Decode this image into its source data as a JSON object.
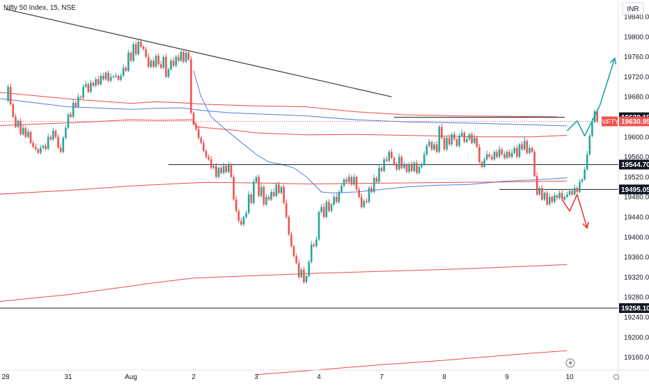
{
  "header": {
    "title": "Nifty 50 Index, 15, NSE"
  },
  "currency_button": "INR",
  "chart_data": {
    "type": "candlestick",
    "symbol": "NIFTY",
    "interval": "15",
    "exchange": "NSE",
    "currency": "INR",
    "ylim": [
      19130,
      19870
    ],
    "y_ticks": [
      "19840.00",
      "19800.00",
      "19760.00",
      "19720.00",
      "19680.00",
      "19640.00",
      "19600.00",
      "19560.00",
      "19520.00",
      "19480.00",
      "19440.00",
      "19400.00",
      "19360.00",
      "19320.00",
      "19280.00",
      "19240.00",
      "19200.00",
      "19160.00"
    ],
    "x_ticks": [
      {
        "label": "28",
        "index": 0
      },
      {
        "label": "31",
        "index": 25
      },
      {
        "label": "Aug",
        "index": 50
      },
      {
        "label": "2",
        "index": 75
      },
      {
        "label": "3",
        "index": 100
      },
      {
        "label": "4",
        "index": 125
      },
      {
        "label": "7",
        "index": 150
      },
      {
        "label": "8",
        "index": 175
      },
      {
        "label": "9",
        "index": 200
      },
      {
        "label": "10",
        "index": 225
      }
    ],
    "price_labels": [
      {
        "text": "19639.15",
        "value": 19639.15,
        "style": "level"
      },
      {
        "text": "19630.95",
        "value": 19630.95,
        "style": "last",
        "tag": "NIFTY"
      },
      {
        "text": "19544.70",
        "value": 19544.7,
        "style": "level"
      },
      {
        "text": "19495.05",
        "value": 19495.05,
        "style": "level"
      },
      {
        "text": "19258.10",
        "value": 19258.1,
        "style": "level"
      }
    ],
    "horizontal_levels": [
      {
        "value": 19639.15,
        "from_index": 155,
        "to_index": 223
      },
      {
        "value": 19544.7,
        "from_index": 65,
        "to_index": 245
      },
      {
        "value": 19495.05,
        "from_index": 197,
        "to_index": 245
      },
      {
        "value": 19258.1,
        "from_index": -3,
        "to_index": 245
      }
    ],
    "trendline": {
      "from": [
        0,
        19855
      ],
      "to": [
        154,
        19680
      ]
    },
    "projections": [
      {
        "color": "#1aa5a5",
        "points": [
          [
            224,
            19612
          ],
          [
            228,
            19632
          ],
          [
            231,
            19602
          ],
          [
            237,
            19662
          ],
          [
            243,
            19757
          ]
        ],
        "arrow": true
      },
      {
        "color": "#e53935",
        "points": [
          [
            222,
            19475
          ],
          [
            225,
            19452
          ],
          [
            228,
            19485
          ],
          [
            232,
            19418
          ]
        ],
        "arrow": true
      }
    ],
    "open_close": [
      19672,
      19700,
      19665,
      19640,
      19620,
      19632,
      19605,
      19618,
      19600,
      19610,
      19588,
      19580,
      19575,
      19568,
      19578,
      19582,
      19576,
      19600,
      19595,
      19612,
      19600,
      19578,
      19570,
      19598,
      19618,
      19645,
      19640,
      19668,
      19660,
      19680,
      19678,
      19700,
      19705,
      19690,
      19708,
      19702,
      19715,
      19705,
      19722,
      19715,
      19728,
      19712,
      19720,
      19720,
      19722,
      19714,
      19722,
      19738,
      19732,
      19768,
      19752,
      19785,
      19765,
      19790,
      19780,
      19775,
      19760,
      19740,
      19752,
      19740,
      19762,
      19745,
      19738,
      19760,
      19720,
      19735,
      19752,
      19742,
      19760,
      19752,
      19770,
      19750,
      19768,
      19755,
      19648,
      19625,
      19615,
      19598,
      19588,
      19572,
      19560,
      19555,
      19538,
      19542,
      19520,
      19538,
      19528,
      19542,
      19530,
      19545,
      19520,
      19475,
      19452,
      19432,
      19425,
      19440,
      19448,
      19485,
      19468,
      19510,
      19520,
      19482,
      19500,
      19465,
      19480,
      19475,
      19490,
      19482,
      19505,
      19488,
      19500,
      19468,
      19440,
      19405,
      19382,
      19362,
      19348,
      19320,
      19335,
      19310,
      19322,
      19350,
      19385,
      19382,
      19395,
      19450,
      19460,
      19440,
      19470,
      19452,
      19465,
      19480,
      19470,
      19490,
      19502,
      19515,
      19510,
      19520,
      19505,
      19520,
      19495,
      19480,
      19460,
      19472,
      19470,
      19498,
      19490,
      19518,
      19510,
      19538,
      19532,
      19555,
      19552,
      19570,
      19558,
      19545,
      19535,
      19560,
      19538,
      19545,
      19530,
      19545,
      19532,
      19548,
      19528,
      19540,
      19545,
      19565,
      19582,
      19590,
      19575,
      19585,
      19570,
      19620,
      19598,
      19575,
      19598,
      19585,
      19605,
      19595,
      19582,
      19602,
      19608,
      19590,
      19595,
      19605,
      19588,
      19598,
      19580,
      19550,
      19540,
      19555,
      19565,
      19560,
      19555,
      19570,
      19560,
      19575,
      19565,
      19558,
      19570,
      19560,
      19568,
      19578,
      19560,
      19585,
      19575,
      19592,
      19568,
      19578,
      19570,
      19522,
      19485,
      19498,
      19475,
      19488,
      19465,
      19480,
      19470,
      19483,
      19478,
      19488,
      19475,
      19480,
      19485,
      19492,
      19485,
      19498,
      19490,
      19510,
      19515,
      19535,
      19565,
      19602,
      19630,
      19651,
      19631
    ],
    "highs_lows_note": "wicks extend a few points beyond open/close",
    "moving_averages": [
      {
        "color": "#e53935",
        "points": [
          [
            -5,
            19690
          ],
          [
            25,
            19676
          ],
          [
            50,
            19667
          ],
          [
            60,
            19670
          ],
          [
            70,
            19668
          ],
          [
            80,
            19665
          ],
          [
            100,
            19662
          ],
          [
            120,
            19660
          ],
          [
            140,
            19650
          ],
          [
            150,
            19647
          ],
          [
            160,
            19644
          ],
          [
            180,
            19642
          ],
          [
            200,
            19641
          ],
          [
            220,
            19640
          ]
        ]
      },
      {
        "color": "#3d6fd8",
        "points": [
          [
            -5,
            19678
          ],
          [
            25,
            19660
          ],
          [
            50,
            19655
          ],
          [
            60,
            19657
          ],
          [
            70,
            19658
          ],
          [
            75,
            19655
          ],
          [
            80,
            19652
          ],
          [
            90,
            19648
          ],
          [
            100,
            19646
          ],
          [
            120,
            19642
          ],
          [
            140,
            19634
          ],
          [
            160,
            19630
          ],
          [
            190,
            19627
          ],
          [
            210,
            19624
          ],
          [
            224,
            19622
          ]
        ]
      },
      {
        "color": "#e53935",
        "points": [
          [
            -5,
            19622
          ],
          [
            25,
            19628
          ],
          [
            50,
            19634
          ],
          [
            60,
            19633
          ],
          [
            75,
            19634
          ],
          [
            76,
            19620
          ],
          [
            90,
            19614
          ],
          [
            100,
            19608
          ],
          [
            120,
            19604
          ],
          [
            140,
            19605
          ],
          [
            160,
            19603
          ],
          [
            190,
            19600
          ],
          [
            210,
            19600
          ],
          [
            224,
            19603
          ]
        ]
      },
      {
        "color": "#3d6fd8",
        "points": [
          [
            75,
            19732
          ],
          [
            78,
            19680
          ],
          [
            82,
            19640
          ],
          [
            90,
            19605
          ],
          [
            100,
            19565
          ],
          [
            105,
            19550
          ],
          [
            110,
            19545
          ],
          [
            115,
            19538
          ],
          [
            120,
            19520
          ],
          [
            126,
            19490
          ],
          [
            130,
            19488
          ],
          [
            140,
            19490
          ],
          [
            150,
            19495
          ],
          [
            160,
            19500
          ],
          [
            170,
            19503
          ],
          [
            185,
            19505
          ],
          [
            200,
            19512
          ],
          [
            210,
            19514
          ],
          [
            220,
            19517
          ],
          [
            224,
            19518
          ]
        ]
      },
      {
        "color": "#e53935",
        "points": [
          [
            -5,
            19485
          ],
          [
            25,
            19493
          ],
          [
            50,
            19502
          ],
          [
            70,
            19507
          ],
          [
            80,
            19509
          ],
          [
            100,
            19508
          ],
          [
            120,
            19506
          ],
          [
            140,
            19507
          ],
          [
            160,
            19508
          ],
          [
            180,
            19509
          ],
          [
            200,
            19510
          ],
          [
            224,
            19512
          ]
        ]
      },
      {
        "color": "#e53935",
        "points": [
          [
            -5,
            19270
          ],
          [
            25,
            19285
          ],
          [
            50,
            19302
          ],
          [
            60,
            19309
          ],
          [
            75,
            19318
          ],
          [
            100,
            19323
          ],
          [
            120,
            19327
          ],
          [
            140,
            19330
          ],
          [
            160,
            19333
          ],
          [
            180,
            19336
          ],
          [
            200,
            19340
          ],
          [
            224,
            19345
          ]
        ]
      },
      {
        "color": "#e53935",
        "points": [
          [
            100,
            19125
          ],
          [
            130,
            19137
          ],
          [
            150,
            19145
          ],
          [
            170,
            19152
          ],
          [
            190,
            19160
          ],
          [
            210,
            19168
          ],
          [
            224,
            19173
          ]
        ]
      }
    ]
  }
}
